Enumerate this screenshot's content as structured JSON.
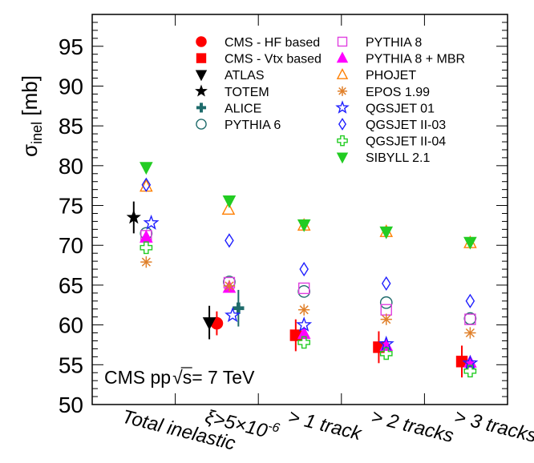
{
  "chart_data": {
    "type": "scatter",
    "title": "",
    "ylabel": "σ",
    "ylabel_sub": "inel",
    "ylabel_unit": " [mb]",
    "ylim": [
      50,
      99
    ],
    "yticks": [
      50,
      55,
      60,
      65,
      70,
      75,
      80,
      85,
      90,
      95
    ],
    "categories": [
      {
        "label": "Total inelastic"
      },
      {
        "label": "ξ>5×10",
        "sup": "-6"
      },
      {
        "label": "> 1 track"
      },
      {
        "label": "> 2 tracks"
      },
      {
        "label": "> 3 tracks"
      }
    ],
    "annotation": {
      "prefix": "CMS pp ",
      "sqrt": "√",
      "s": "s",
      "suffix": " = 7 TeV"
    },
    "series": [
      {
        "name": "CMS - HF based",
        "marker": "circle",
        "filled": true,
        "color": "#ff0000",
        "points": [
          {
            "cat": 1,
            "offset": 0.0,
            "y": 60.2,
            "err": 1.5
          }
        ]
      },
      {
        "name": "CMS - Vtx based",
        "marker": "square",
        "filled": true,
        "color": "#ff0000",
        "points": [
          {
            "cat": 2,
            "offset": -0.05,
            "y": 58.7,
            "err": 2.0
          },
          {
            "cat": 3,
            "offset": -0.05,
            "y": 57.2,
            "err": 2.0
          },
          {
            "cat": 4,
            "offset": -0.05,
            "y": 55.4,
            "err": 2.0
          }
        ]
      },
      {
        "name": "ATLAS",
        "marker": "triangle-down",
        "filled": true,
        "color": "#000000",
        "points": [
          {
            "cat": 1,
            "offset": -0.09,
            "y": 60.3,
            "err": 2.1
          }
        ]
      },
      {
        "name": "TOTEM",
        "marker": "star",
        "filled": true,
        "color": "#000000",
        "points": [
          {
            "cat": 0,
            "offset": 0.0,
            "y": 73.5,
            "err": 2.0
          }
        ]
      },
      {
        "name": "ALICE",
        "marker": "cross",
        "filled": true,
        "color": "#1e6b6b",
        "points": [
          {
            "cat": 1,
            "offset": 0.26,
            "y": 62.1,
            "err": 2.3
          }
        ]
      },
      {
        "name": "PYTHIA 6",
        "marker": "circle",
        "filled": false,
        "color": "#1e6b6b",
        "points": [
          {
            "cat": 0,
            "offset": 0.15,
            "y": 71.5
          },
          {
            "cat": 1,
            "offset": 0.15,
            "y": 65.4
          },
          {
            "cat": 2,
            "offset": 0.05,
            "y": 64.2
          },
          {
            "cat": 3,
            "offset": 0.04,
            "y": 62.8
          },
          {
            "cat": 4,
            "offset": 0.05,
            "y": 60.8
          }
        ]
      },
      {
        "name": "PYTHIA 8",
        "marker": "square",
        "filled": false,
        "color": "#e040e0",
        "points": [
          {
            "cat": 0,
            "offset": 0.15,
            "y": 71.2
          },
          {
            "cat": 1,
            "offset": 0.15,
            "y": 65.3
          },
          {
            "cat": 2,
            "offset": 0.05,
            "y": 64.6
          },
          {
            "cat": 3,
            "offset": 0.04,
            "y": 61.9
          },
          {
            "cat": 4,
            "offset": 0.05,
            "y": 60.7
          }
        ]
      },
      {
        "name": "PYTHIA 8 + MBR",
        "marker": "triangle-up",
        "filled": true,
        "color": "#ff00ff",
        "points": [
          {
            "cat": 0,
            "offset": 0.15,
            "y": 71.0
          },
          {
            "cat": 1,
            "offset": 0.15,
            "y": 64.7
          },
          {
            "cat": 2,
            "offset": 0.05,
            "y": 58.9
          },
          {
            "cat": 3,
            "offset": 0.04,
            "y": 57.4
          },
          {
            "cat": 4,
            "offset": 0.05,
            "y": 55.3
          }
        ]
      },
      {
        "name": "PHOJET",
        "marker": "triangle-up",
        "filled": false,
        "color": "#ff7f00",
        "points": [
          {
            "cat": 0,
            "offset": 0.15,
            "y": 77.4
          },
          {
            "cat": 1,
            "offset": 0.14,
            "y": 74.5
          },
          {
            "cat": 2,
            "offset": 0.05,
            "y": 72.5
          },
          {
            "cat": 3,
            "offset": 0.04,
            "y": 71.7
          },
          {
            "cat": 4,
            "offset": 0.05,
            "y": 70.3
          }
        ]
      },
      {
        "name": "EPOS 1.99",
        "marker": "asterisk",
        "filled": false,
        "color": "#e0802a",
        "points": [
          {
            "cat": 0,
            "offset": 0.15,
            "y": 67.9
          },
          {
            "cat": 1,
            "offset": 0.15,
            "y": 64.9
          },
          {
            "cat": 2,
            "offset": 0.05,
            "y": 61.9
          },
          {
            "cat": 3,
            "offset": 0.04,
            "y": 60.7
          },
          {
            "cat": 4,
            "offset": 0.05,
            "y": 59.0
          }
        ]
      },
      {
        "name": "QGSJET 01",
        "marker": "star",
        "filled": false,
        "color": "#2020ff",
        "points": [
          {
            "cat": 0,
            "offset": 0.21,
            "y": 72.8
          },
          {
            "cat": 1,
            "offset": 0.19,
            "y": 61.2
          },
          {
            "cat": 2,
            "offset": 0.05,
            "y": 60.0
          },
          {
            "cat": 3,
            "offset": 0.04,
            "y": 57.6
          },
          {
            "cat": 4,
            "offset": 0.05,
            "y": 55.2
          }
        ]
      },
      {
        "name": "QGSJET II-03",
        "marker": "diamond",
        "filled": false,
        "color": "#2020ff",
        "points": [
          {
            "cat": 0,
            "offset": 0.15,
            "y": 77.6
          },
          {
            "cat": 1,
            "offset": 0.15,
            "y": 70.6
          },
          {
            "cat": 2,
            "offset": 0.05,
            "y": 67.0
          },
          {
            "cat": 3,
            "offset": 0.04,
            "y": 65.2
          },
          {
            "cat": 4,
            "offset": 0.05,
            "y": 63.0
          }
        ]
      },
      {
        "name": "QGSJET II-04",
        "marker": "open-cross",
        "filled": false,
        "color": "#22cc22",
        "points": [
          {
            "cat": 0,
            "offset": 0.15,
            "y": 69.7
          },
          {
            "cat": 2,
            "offset": 0.05,
            "y": 57.8
          },
          {
            "cat": 3,
            "offset": 0.04,
            "y": 56.4
          },
          {
            "cat": 4,
            "offset": 0.05,
            "y": 54.2
          }
        ]
      },
      {
        "name": "SIBYLL 2.1",
        "marker": "triangle-down",
        "filled": true,
        "color": "#22cc22",
        "points": [
          {
            "cat": 0,
            "offset": 0.15,
            "y": 79.8
          },
          {
            "cat": 1,
            "offset": 0.15,
            "y": 75.6
          },
          {
            "cat": 2,
            "offset": 0.05,
            "y": 72.6
          },
          {
            "cat": 3,
            "offset": 0.04,
            "y": 71.7
          },
          {
            "cat": 4,
            "offset": 0.05,
            "y": 70.4
          }
        ]
      }
    ],
    "legend": {
      "placement": "top-right",
      "columns": [
        [
          "CMS - HF based",
          "CMS - Vtx based",
          "ATLAS",
          "TOTEM",
          "ALICE",
          "PYTHIA 6"
        ],
        [
          "PYTHIA 8",
          "PYTHIA 8 + MBR",
          "PHOJET",
          "EPOS 1.99",
          "QGSJET 01",
          "QGSJET II-03",
          "QGSJET II-04",
          "SIBYLL 2.1"
        ]
      ]
    }
  }
}
